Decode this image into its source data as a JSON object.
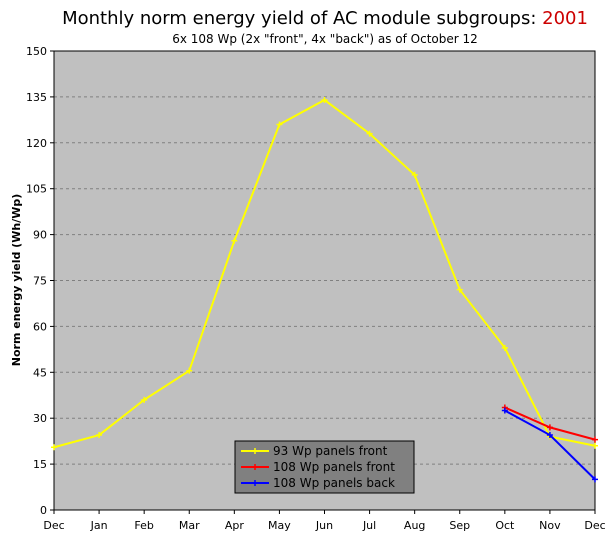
{
  "chart_data": {
    "type": "line",
    "title": "Monthly norm energy yield of AC module subgroups: ",
    "title_year": "2001",
    "subtitle": "6x 108 Wp (2x \"front\", 4x \"back\") as of October 12",
    "xlabel": "",
    "ylabel": "Norm energy yield (Wh/Wp)",
    "categories": [
      "Dec",
      "Jan",
      "Feb",
      "Mar",
      "Apr",
      "May",
      "Jun",
      "Jul",
      "Aug",
      "Sep",
      "Oct",
      "Nov",
      "Dec"
    ],
    "ylim": [
      0,
      150
    ],
    "yticks": [
      0,
      15,
      30,
      45,
      60,
      75,
      90,
      105,
      120,
      135,
      150
    ],
    "grid": true,
    "legend_position": "bottom-center",
    "series": [
      {
        "name": "93 Wp panels front",
        "color": "#ffff00",
        "values": [
          20.5,
          24.5,
          36,
          45.5,
          88,
          126,
          134,
          123,
          109.5,
          72,
          53,
          24,
          21
        ]
      },
      {
        "name": "108 Wp panels front",
        "color": "#ff0000",
        "values": [
          null,
          null,
          null,
          null,
          null,
          null,
          null,
          null,
          null,
          null,
          33.5,
          27,
          23
        ]
      },
      {
        "name": "108 Wp panels back",
        "color": "#0000ff",
        "values": [
          null,
          null,
          null,
          null,
          null,
          null,
          null,
          null,
          null,
          null,
          32.5,
          24.5,
          10
        ]
      }
    ],
    "colors": {
      "plot_background": "#c0c0c0",
      "legend_background": "#808080"
    }
  }
}
